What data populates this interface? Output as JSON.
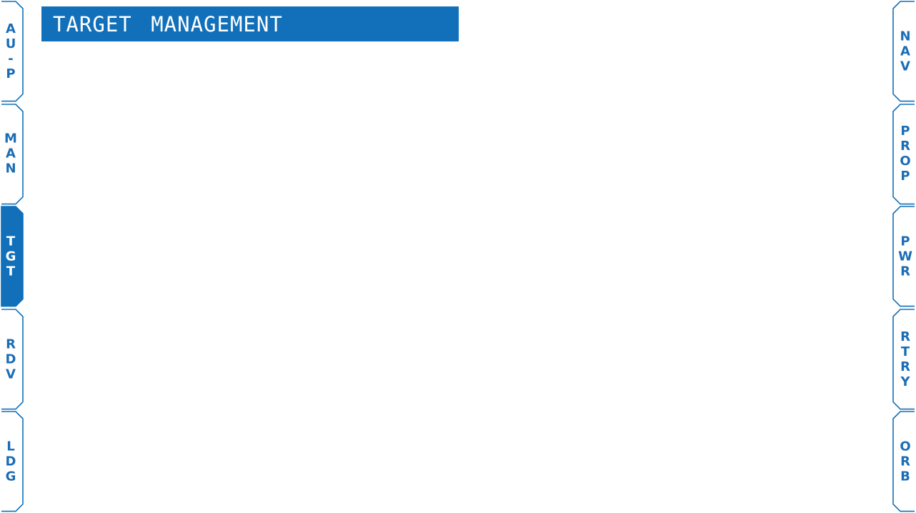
{
  "header": {
    "title": "TARGET MANAGEMENT"
  },
  "left_tabs": [
    {
      "label": "AU-P",
      "letters": [
        "A",
        "U",
        "-",
        "P"
      ],
      "active": false
    },
    {
      "label": "MAN",
      "letters": [
        "M",
        "A",
        "N"
      ],
      "active": false
    },
    {
      "label": "TGT",
      "letters": [
        "T",
        "G",
        "T"
      ],
      "active": true
    },
    {
      "label": "RDV",
      "letters": [
        "R",
        "D",
        "V"
      ],
      "active": false
    },
    {
      "label": "LDG",
      "letters": [
        "L",
        "D",
        "G"
      ],
      "active": false
    }
  ],
  "right_tabs": [
    {
      "label": "NAV",
      "letters": [
        "N",
        "A",
        "V"
      ],
      "active": false
    },
    {
      "label": "PROP",
      "letters": [
        "P",
        "R",
        "O",
        "P"
      ],
      "active": false
    },
    {
      "label": "PWR",
      "letters": [
        "P",
        "W",
        "R"
      ],
      "active": false
    },
    {
      "label": "RTRY",
      "letters": [
        "R",
        "T",
        "R",
        "Y"
      ],
      "active": false
    },
    {
      "label": "ORB",
      "letters": [
        "O",
        "R",
        "B"
      ],
      "active": false
    }
  ],
  "colors": {
    "accent": "#1170b9",
    "tab_text": "#1a6db5",
    "background": "#ffffff"
  }
}
